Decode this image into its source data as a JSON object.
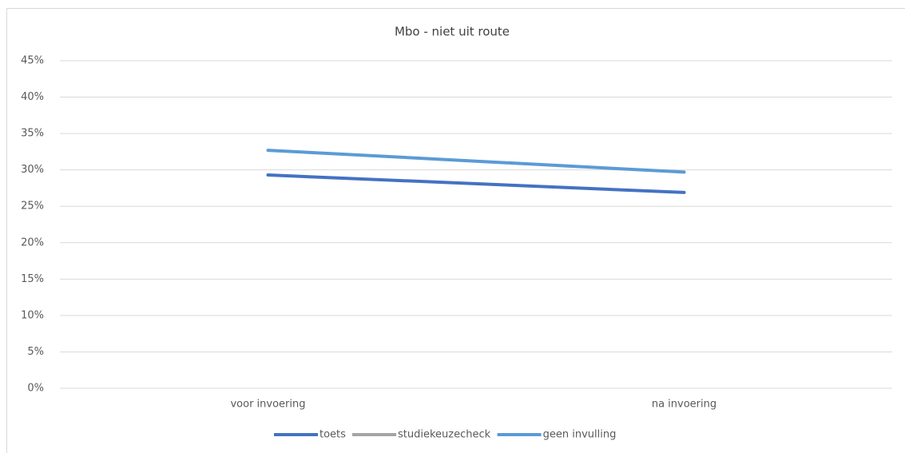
{
  "chart_data": {
    "type": "line",
    "title": "Mbo - niet uit route",
    "categories": [
      "voor invoering",
      "na invoering"
    ],
    "series": [
      {
        "name": "toets",
        "color": "#4472c4",
        "values": [
          29.3,
          26.9
        ]
      },
      {
        "name": "studiekeuzecheck",
        "color": "#a5a5a5",
        "values": [
          null,
          null
        ]
      },
      {
        "name": "geen invulling",
        "color": "#5b9bd5",
        "values": [
          32.7,
          29.7
        ]
      }
    ],
    "ylim": [
      0,
      45
    ],
    "yticks": [
      {
        "value": 0,
        "label": "0%"
      },
      {
        "value": 5,
        "label": "5%"
      },
      {
        "value": 10,
        "label": "10%"
      },
      {
        "value": 15,
        "label": "15%"
      },
      {
        "value": 20,
        "label": "20%"
      },
      {
        "value": 25,
        "label": "25%"
      },
      {
        "value": 30,
        "label": "30%"
      },
      {
        "value": 35,
        "label": "35%"
      },
      {
        "value": 40,
        "label": "40%"
      },
      {
        "value": 45,
        "label": "45%"
      }
    ],
    "grid": true,
    "legend": "bottom"
  }
}
